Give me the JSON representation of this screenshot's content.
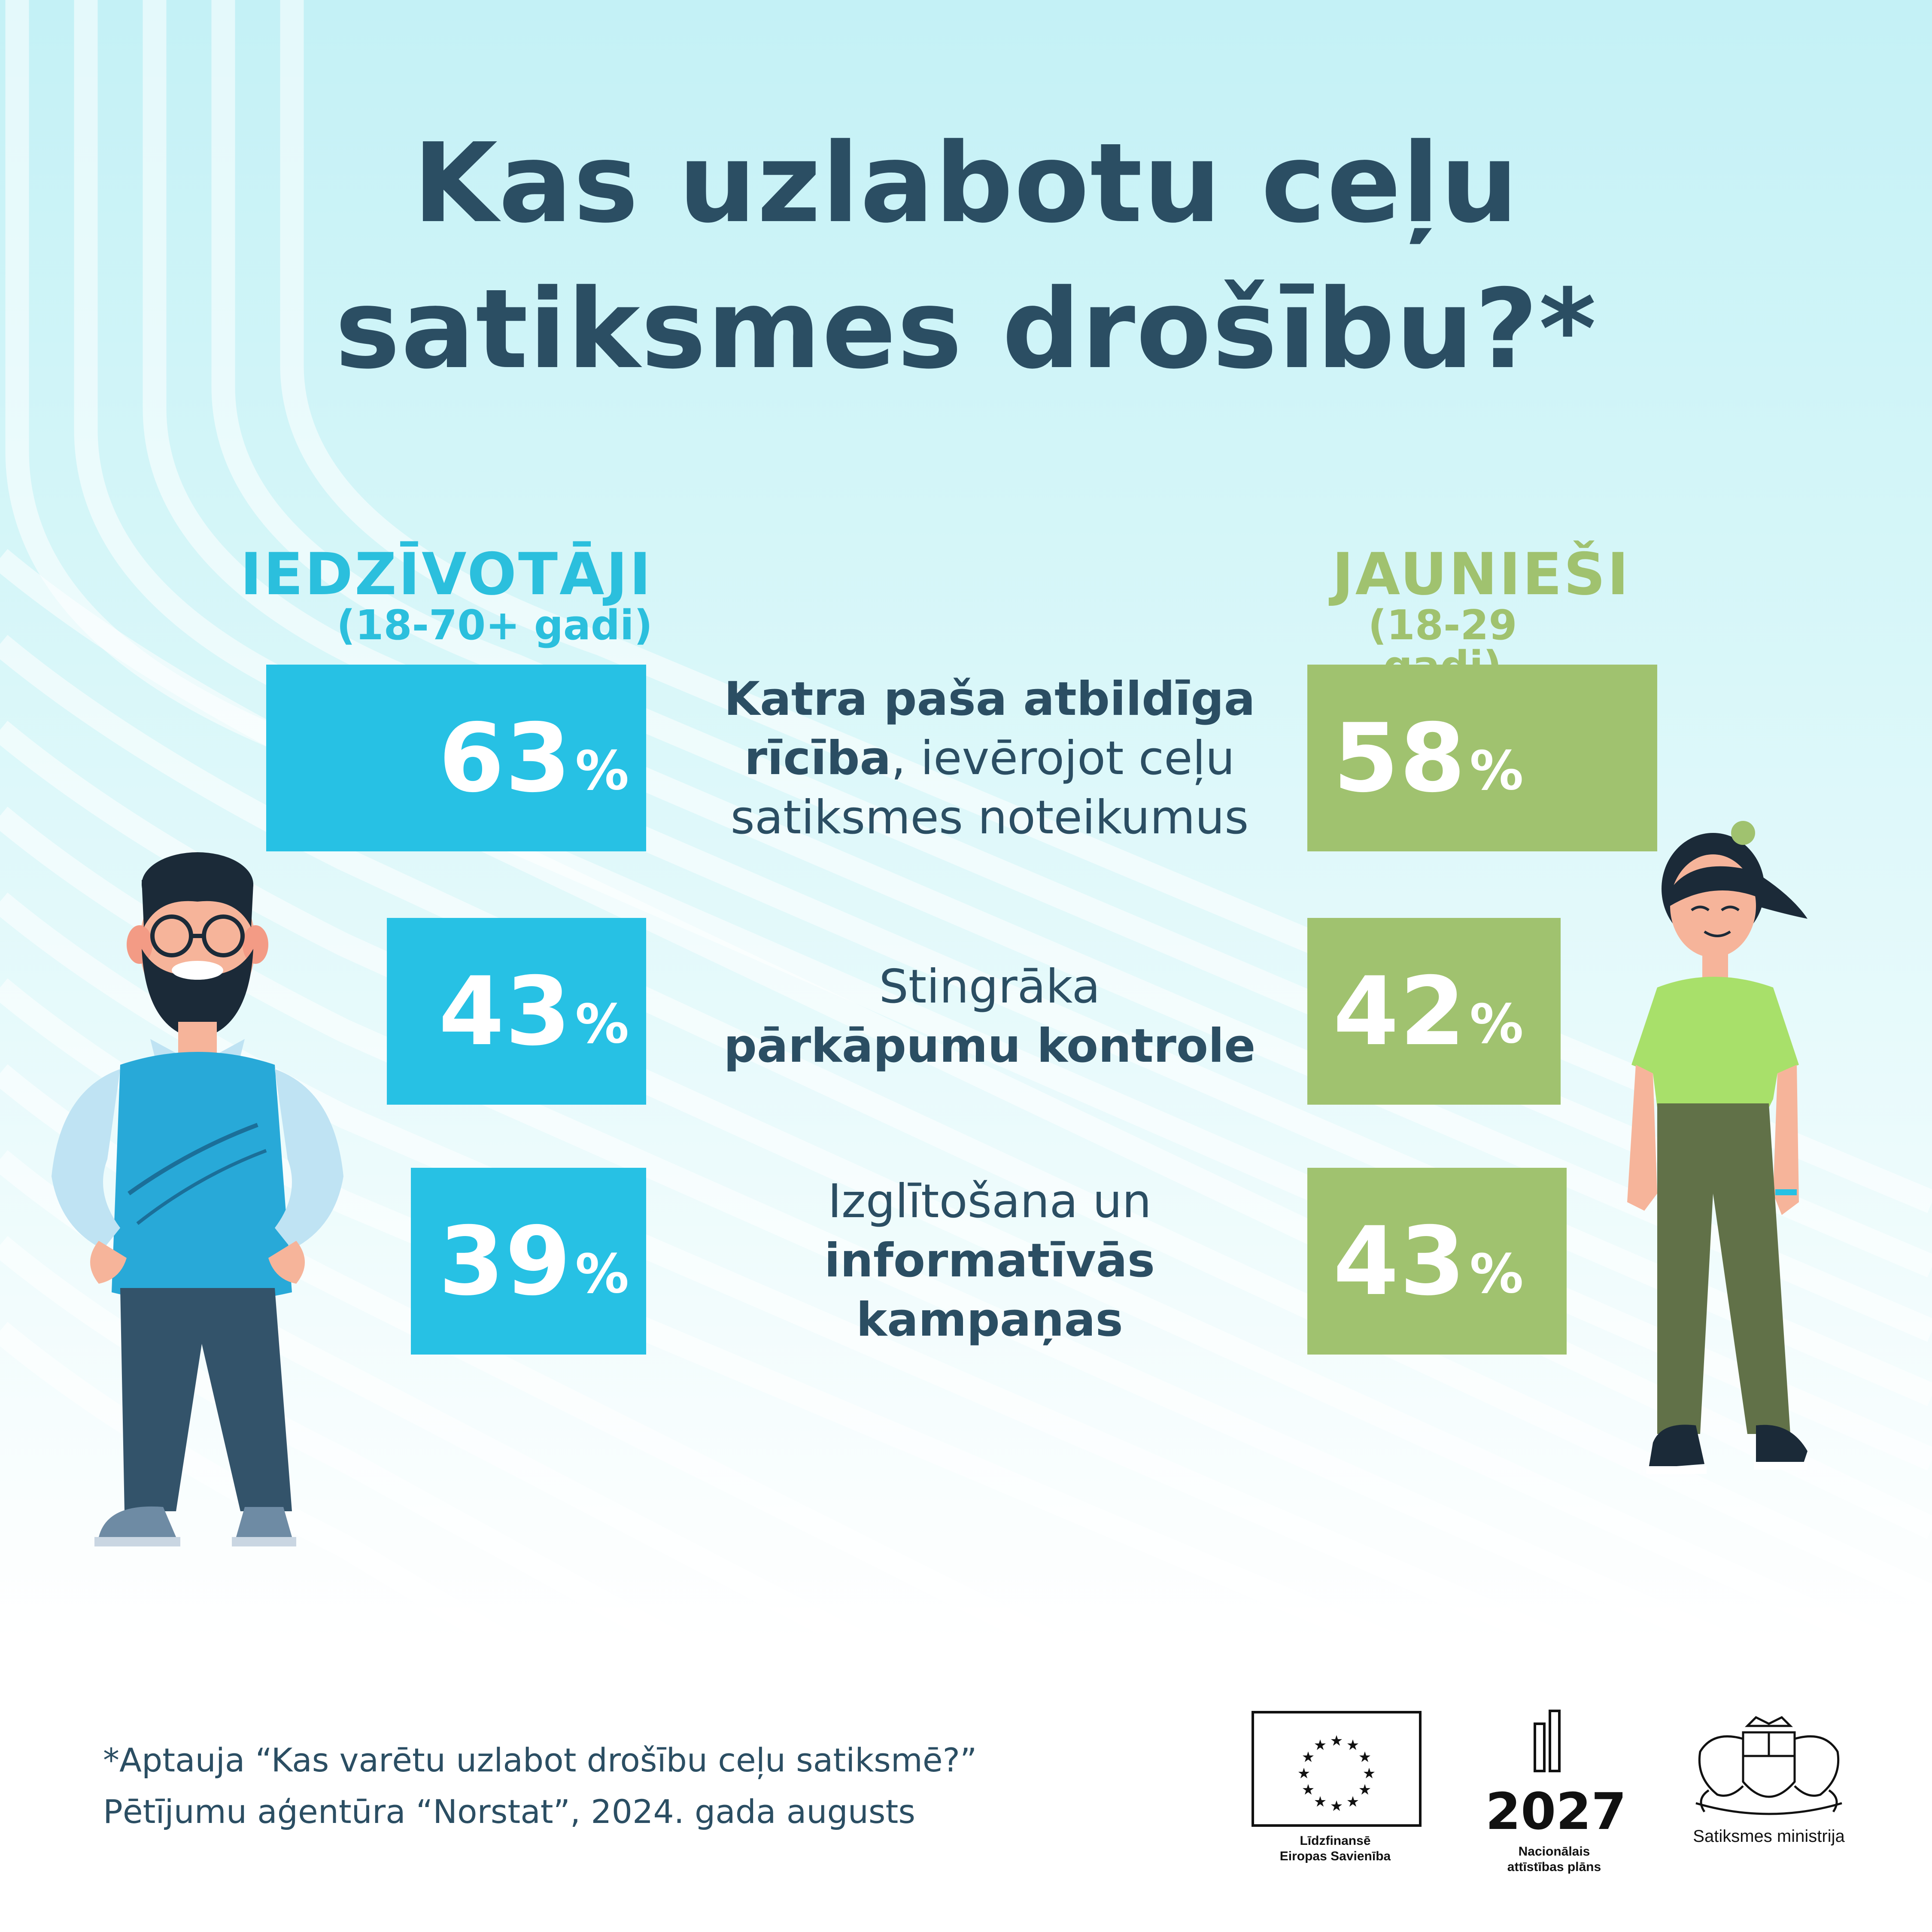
{
  "title": {
    "line1": "Kas uzlabotu ceļu",
    "line2": "satiksmes drošību?*"
  },
  "groups": {
    "left": {
      "title": "IEDZĪVOTĀJI",
      "subtitle": "(18-70+ gadi)",
      "color": "#27c1e4"
    },
    "right": {
      "title": "JAUNIEŠI",
      "subtitle": "(18-29 gadi)",
      "color": "#a0c26f"
    }
  },
  "categories": [
    {
      "bold1": "Katra paša atbildīga",
      "bold2": "rīcība",
      "regular": ", ievērojot ceļu",
      "regular2": "satiksmes noteikumus"
    },
    {
      "regular": "Stingrāka",
      "bold": "pārkāpumu kontrole"
    },
    {
      "regular": "Izglītošana un",
      "bold1": "informatīvās",
      "bold2": "kampaņas"
    }
  ],
  "chart_data": {
    "type": "bar",
    "title": "Kas uzlabotu ceļu satiksmes drošību?*",
    "categories": [
      "Katra paša atbildīga rīcība, ievērojot ceļu satiksmes noteikumus",
      "Stingrāka pārkāpumu kontrole",
      "Izglītošana un informatīvās kampaņas"
    ],
    "unit": "%",
    "series": [
      {
        "name": "IEDZĪVOTĀJI (18-70+ gadi)",
        "values": [
          63,
          43,
          39
        ]
      },
      {
        "name": "JAUNIEŠI (18-29 gadi)",
        "values": [
          58,
          42,
          43
        ]
      }
    ],
    "orientation": "horizontal, mirrored"
  },
  "labels": {
    "left": [
      {
        "num": "63",
        "unit": "%"
      },
      {
        "num": "43",
        "unit": "%"
      },
      {
        "num": "39",
        "unit": "%"
      }
    ],
    "right": [
      {
        "num": "58",
        "unit": "%"
      },
      {
        "num": "42",
        "unit": "%"
      },
      {
        "num": "43",
        "unit": "%"
      }
    ]
  },
  "footnote": {
    "line1": "*Aptauja “Kas varētu uzlabot drošību ceļu satiksmē?”",
    "line2": "Pētījumu aģentūra “Norstat”, 2024. gada augusts"
  },
  "logos": {
    "eu": {
      "line1": "Līdzfinansē",
      "line2": "Eiropas Savienība",
      "icon": "eu-flag-icon"
    },
    "np": {
      "year": "2027",
      "line1": "Nacionālais",
      "line2": "attīstības plāns",
      "icon": "bars-icon"
    },
    "sm": {
      "caption": "Satiksmes ministrija",
      "icon": "coat-of-arms-icon"
    }
  }
}
